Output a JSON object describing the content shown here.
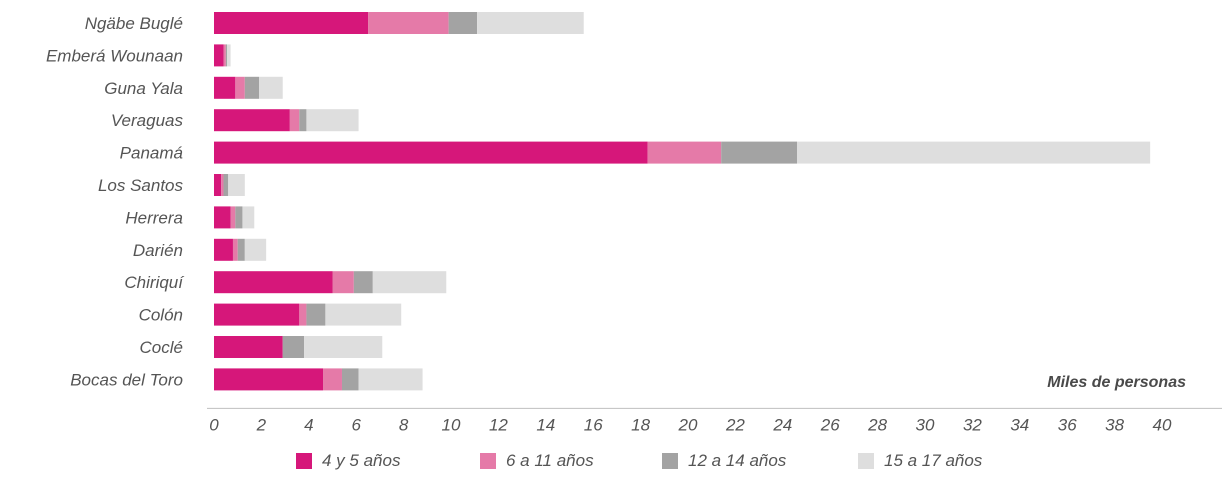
{
  "chart_data": {
    "type": "bar",
    "orientation": "horizontal",
    "stacked": true,
    "categories": [
      "Ngäbe Buglé",
      "Emberá Wounaan",
      "Guna Yala",
      "Veraguas",
      "Panamá",
      "Los Santos",
      "Herrera",
      "Darién",
      "Chiriquí",
      "Colón",
      "Coclé",
      "Bocas del Toro"
    ],
    "series": [
      {
        "name": "4 y 5 años",
        "color": "#d6177a",
        "values": [
          6.5,
          0.4,
          0.9,
          3.2,
          18.3,
          0.3,
          0.7,
          0.8,
          5.0,
          3.6,
          2.9,
          4.6
        ]
      },
      {
        "name": "6 a 11 años",
        "color": "#e57aa8",
        "values": [
          3.4,
          0.1,
          0.4,
          0.4,
          3.1,
          0.1,
          0.2,
          0.2,
          0.9,
          0.3,
          0.0,
          0.8
        ]
      },
      {
        "name": "12 a 14 años",
        "color": "#a3a3a3",
        "values": [
          1.2,
          0.05,
          0.6,
          0.3,
          3.2,
          0.2,
          0.3,
          0.3,
          0.8,
          0.8,
          0.9,
          0.7
        ]
      },
      {
        "name": "15 a 17 años",
        "color": "#dedede",
        "values": [
          4.5,
          0.15,
          1.0,
          2.2,
          14.9,
          0.7,
          0.5,
          0.9,
          3.1,
          3.2,
          3.3,
          2.7
        ]
      }
    ],
    "xlim": [
      0,
      40
    ],
    "xticks": [
      0,
      2,
      4,
      6,
      8,
      10,
      12,
      14,
      16,
      18,
      20,
      22,
      24,
      26,
      28,
      30,
      32,
      34,
      36,
      38,
      40
    ],
    "unit_label": "Miles de personas",
    "legend_position": "bottom",
    "grid": false
  }
}
